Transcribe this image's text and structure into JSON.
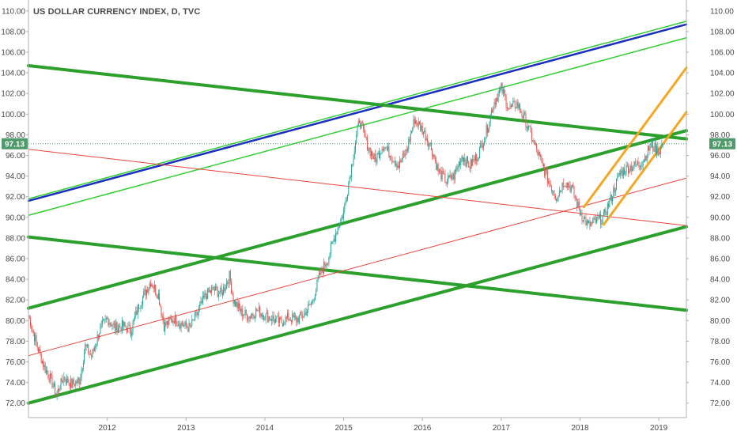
{
  "header": {
    "title": "US DOLLAR CURRENCY INDEX, D, TVC"
  },
  "colors": {
    "candle_up": "#26a69a",
    "candle_down": "#ef5350",
    "green_line": "#2ca02c",
    "light_green_line": "#32cd32",
    "blue_line": "#1a2fbf",
    "red_line": "#e8453c",
    "orange_line": "#f5a623",
    "price_tag": "#4f9a6a",
    "axis_text": "#4a4a4a"
  },
  "chart_data": {
    "type": "line",
    "title": "US DOLLAR CURRENCY INDEX, D, TVC",
    "xlabel": "",
    "ylabel": "",
    "xlim": [
      2011.0,
      2019.35
    ],
    "ylim": [
      70.6,
      110.6
    ],
    "grid": false,
    "legend": "none",
    "x_ticks": [
      "2012",
      "2013",
      "2014",
      "2015",
      "2016",
      "2017",
      "2018",
      "2019"
    ],
    "x_tick_values": [
      2012,
      2013,
      2014,
      2015,
      2016,
      2017,
      2018,
      2019
    ],
    "y_ticks": [
      "72.00",
      "74.00",
      "76.00",
      "78.00",
      "80.00",
      "82.00",
      "84.00",
      "86.00",
      "88.00",
      "90.00",
      "92.00",
      "94.00",
      "96.00",
      "98.00",
      "100.00",
      "102.00",
      "104.00",
      "106.00",
      "108.00",
      "110.00"
    ],
    "y_tick_values": [
      72,
      74,
      76,
      78,
      80,
      82,
      84,
      86,
      88,
      90,
      92,
      94,
      96,
      98,
      100,
      102,
      104,
      106,
      108,
      110
    ],
    "last_price": "97.13",
    "last_price_value": 97.13,
    "price_path": [
      [
        2011.0,
        80.5
      ],
      [
        2011.1,
        77.8
      ],
      [
        2011.2,
        75.5
      ],
      [
        2011.3,
        74.0
      ],
      [
        2011.35,
        72.8
      ],
      [
        2011.45,
        74.5
      ],
      [
        2011.55,
        73.8
      ],
      [
        2011.65,
        74.2
      ],
      [
        2011.72,
        77.5
      ],
      [
        2011.8,
        76.5
      ],
      [
        2011.9,
        79.0
      ],
      [
        2012.0,
        80.2
      ],
      [
        2012.1,
        79.3
      ],
      [
        2012.2,
        79.5
      ],
      [
        2012.3,
        79.0
      ],
      [
        2012.4,
        81.5
      ],
      [
        2012.5,
        83.0
      ],
      [
        2012.55,
        83.8
      ],
      [
        2012.65,
        82.5
      ],
      [
        2012.72,
        79.5
      ],
      [
        2012.85,
        80.2
      ],
      [
        2012.95,
        79.6
      ],
      [
        2013.05,
        79.3
      ],
      [
        2013.15,
        80.8
      ],
      [
        2013.25,
        82.5
      ],
      [
        2013.35,
        83.0
      ],
      [
        2013.45,
        82.6
      ],
      [
        2013.55,
        84.3
      ],
      [
        2013.6,
        82.0
      ],
      [
        2013.7,
        80.8
      ],
      [
        2013.8,
        80.4
      ],
      [
        2013.9,
        81.0
      ],
      [
        2014.0,
        80.5
      ],
      [
        2014.1,
        80.2
      ],
      [
        2014.2,
        79.8
      ],
      [
        2014.3,
        80.3
      ],
      [
        2014.4,
        80.1
      ],
      [
        2014.5,
        80.6
      ],
      [
        2014.6,
        81.8
      ],
      [
        2014.7,
        84.5
      ],
      [
        2014.8,
        86.0
      ],
      [
        2014.9,
        88.5
      ],
      [
        2015.0,
        90.5
      ],
      [
        2015.1,
        95.0
      ],
      [
        2015.2,
        99.5
      ],
      [
        2015.3,
        97.0
      ],
      [
        2015.4,
        95.5
      ],
      [
        2015.5,
        97.0
      ],
      [
        2015.6,
        96.0
      ],
      [
        2015.7,
        95.0
      ],
      [
        2015.8,
        96.5
      ],
      [
        2015.9,
        99.5
      ],
      [
        2016.0,
        98.5
      ],
      [
        2016.1,
        97.0
      ],
      [
        2016.2,
        94.5
      ],
      [
        2016.3,
        93.5
      ],
      [
        2016.4,
        94.0
      ],
      [
        2016.5,
        96.0
      ],
      [
        2016.6,
        95.0
      ],
      [
        2016.7,
        96.0
      ],
      [
        2016.8,
        98.0
      ],
      [
        2016.9,
        101.0
      ],
      [
        2017.0,
        102.5
      ],
      [
        2017.1,
        100.5
      ],
      [
        2017.2,
        101.0
      ],
      [
        2017.3,
        99.5
      ],
      [
        2017.4,
        97.5
      ],
      [
        2017.5,
        95.5
      ],
      [
        2017.6,
        93.5
      ],
      [
        2017.7,
        92.0
      ],
      [
        2017.8,
        93.5
      ],
      [
        2017.9,
        92.8
      ],
      [
        2018.0,
        90.5
      ],
      [
        2018.1,
        89.2
      ],
      [
        2018.2,
        89.6
      ],
      [
        2018.3,
        90.0
      ],
      [
        2018.4,
        92.0
      ],
      [
        2018.5,
        94.2
      ],
      [
        2018.6,
        94.8
      ],
      [
        2018.7,
        95.0
      ],
      [
        2018.8,
        95.5
      ],
      [
        2018.9,
        97.0
      ],
      [
        2019.0,
        96.4
      ],
      [
        2019.05,
        97.13
      ]
    ],
    "drawn_lines": [
      {
        "name": "top-blue-trendline",
        "color": "#1a2fbf",
        "width": 2.5,
        "from": [
          2011.0,
          91.6
        ],
        "to": [
          2019.35,
          108.7
        ]
      },
      {
        "name": "top-green-trendline",
        "color": "#32cd32",
        "width": 1.5,
        "from": [
          2011.0,
          91.8
        ],
        "to": [
          2019.35,
          109.0
        ]
      },
      {
        "name": "mid-green-trendline",
        "color": "#32cd32",
        "width": 1.5,
        "from": [
          2011.0,
          90.2
        ],
        "to": [
          2019.35,
          107.4
        ]
      },
      {
        "name": "descending-upper-green-line",
        "color": "#2ca02c",
        "width": 4,
        "from": [
          2011.0,
          104.7
        ],
        "to": [
          2019.35,
          97.6
        ]
      },
      {
        "name": "descending-lower-green-line",
        "color": "#2ca02c",
        "width": 4,
        "from": [
          2011.0,
          88.1
        ],
        "to": [
          2019.35,
          81.0
        ]
      },
      {
        "name": "channel-upper-green-line",
        "color": "#2ca02c",
        "width": 4,
        "from": [
          2011.0,
          81.2
        ],
        "to": [
          2019.35,
          98.4
        ]
      },
      {
        "name": "channel-lower-green-line",
        "color": "#2ca02c",
        "width": 4,
        "from": [
          2011.0,
          72.0
        ],
        "to": [
          2019.35,
          89.1
        ]
      },
      {
        "name": "descending-red-line",
        "color": "#e8453c",
        "width": 1,
        "from": [
          2011.0,
          96.6
        ],
        "to": [
          2019.35,
          89.2
        ]
      },
      {
        "name": "ascending-red-line",
        "color": "#e8453c",
        "width": 1,
        "from": [
          2011.0,
          76.6
        ],
        "to": [
          2019.35,
          93.8
        ]
      },
      {
        "name": "orange-channel-upper",
        "color": "#f5a623",
        "width": 3,
        "from": [
          2018.05,
          91.0
        ],
        "to": [
          2019.35,
          104.5
        ]
      },
      {
        "name": "orange-channel-lower",
        "color": "#f5a623",
        "width": 3,
        "from": [
          2018.3,
          89.3
        ],
        "to": [
          2019.35,
          100.2
        ]
      }
    ]
  }
}
